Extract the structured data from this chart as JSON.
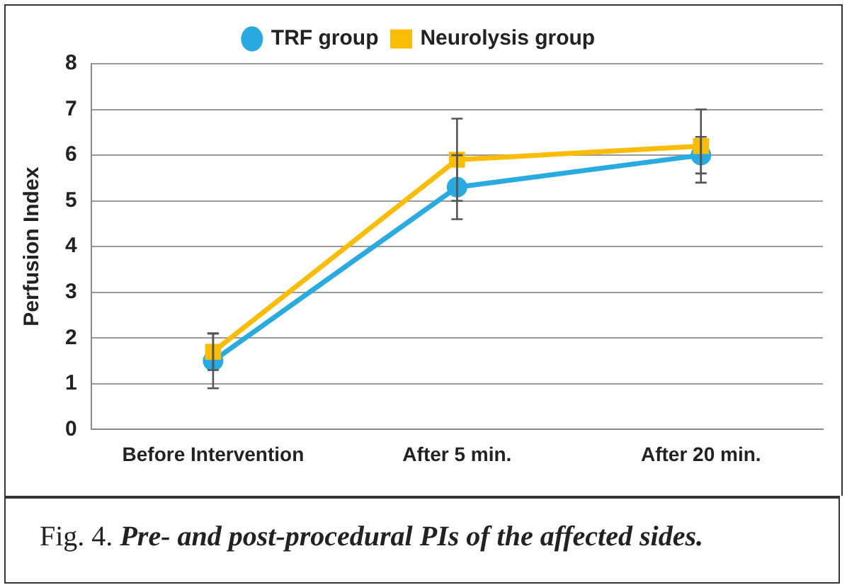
{
  "chart_data": {
    "type": "line",
    "ylabel": "Perfusion Index",
    "categories": [
      "Before Intervention",
      "After 5 min.",
      "After 20 min."
    ],
    "series": [
      {
        "name": "TRF group",
        "color": "#29abe2",
        "marker": "circle",
        "values": [
          1.5,
          5.3,
          6.0
        ],
        "errors": [
          0.6,
          0.7,
          0.4
        ]
      },
      {
        "name": "Neurolysis group",
        "color": "#fbbc05",
        "marker": "square",
        "values": [
          1.7,
          5.9,
          6.2
        ],
        "errors": [
          0.4,
          0.9,
          0.8
        ]
      }
    ],
    "ylim": [
      0,
      8
    ],
    "yticks": [
      0,
      1,
      2,
      3,
      4,
      5,
      6,
      7,
      8
    ],
    "grid": "y",
    "legend": "top",
    "annotations": [
      "Fig. 4. Pre- and post-procedural PIs of the affected sides."
    ]
  }
}
